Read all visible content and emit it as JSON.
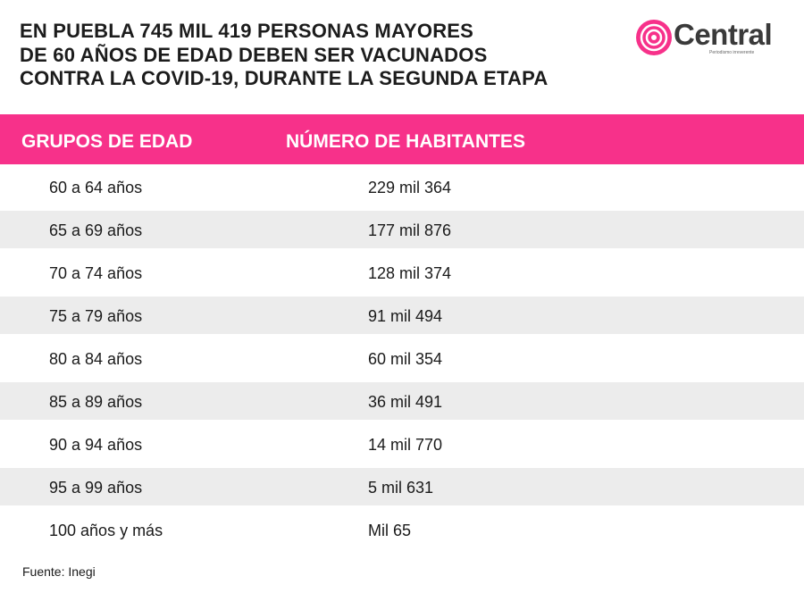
{
  "header": {
    "title_lines": [
      "EN PUEBLA 745 MIL 419 PERSONAS MAYORES",
      "DE 60 AÑOS DE EDAD DEBEN SER VACUNADOS",
      "CONTRA LA COVID-19, DURANTE LA SEGUNDA ETAPA"
    ],
    "logo": {
      "name": "Central",
      "tagline": "Periodismo irreverente"
    }
  },
  "table": {
    "columns": [
      "GRUPOS DE EDAD",
      "NÚMERO DE HABITANTES"
    ],
    "rows": [
      [
        "60 a 64 años",
        "229 mil 364"
      ],
      [
        "65 a 69 años",
        "177 mil 876"
      ],
      [
        "70 a 74 años",
        "128 mil 374"
      ],
      [
        "75 a 79 años",
        "91 mil 494"
      ],
      [
        "80 a 84 años",
        "60 mil 354"
      ],
      [
        "85 a 89 años",
        "36 mil 491"
      ],
      [
        "90 a 94 años",
        "14 mil 770"
      ],
      [
        "95 a 99 años",
        "5 mil 631"
      ],
      [
        "100 años y más",
        "Mil 65"
      ]
    ]
  },
  "footer": {
    "source": "Fuente: Inegi"
  }
}
